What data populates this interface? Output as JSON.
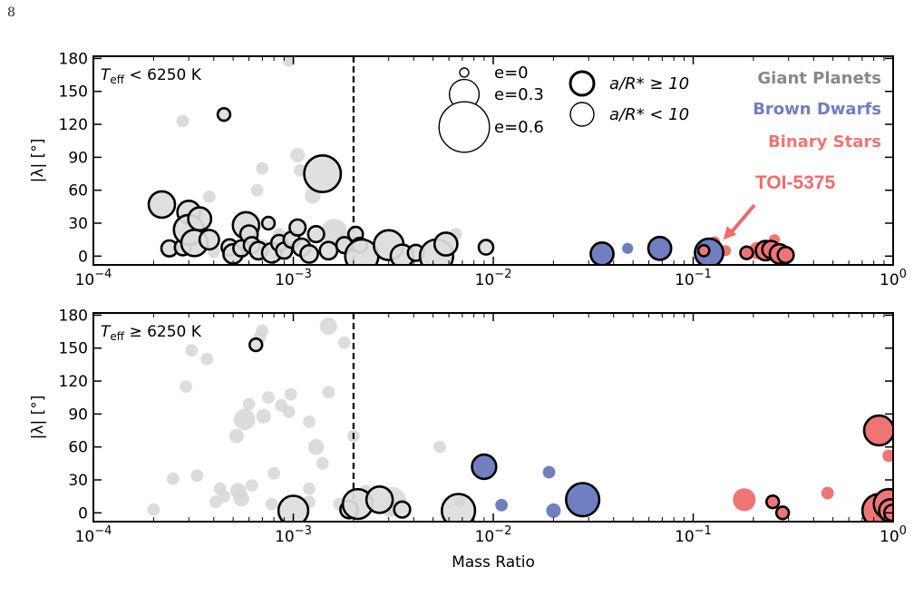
{
  "page_number": "8",
  "colors": {
    "giant_planets": "#888888",
    "brown_dwarfs": "#6f7fc0",
    "binary_stars": "#ef7575",
    "faint_point": "#d6d6d6",
    "annotation": "#ef6b6b"
  },
  "chart_data": [
    {
      "type": "scatter",
      "panel_label": "T_eff < 6250 K",
      "panel_label_parts": {
        "t": "T",
        "sub": "eff",
        "rest": " < 6250 K"
      },
      "xscale": "log",
      "xlim": [
        0.0001,
        1
      ],
      "ylim": [
        -8,
        182
      ],
      "x_ticks": [
        {
          "exp": "−4"
        },
        {
          "exp": "−3"
        },
        {
          "exp": "−2"
        },
        {
          "exp": "−1"
        },
        {
          "exp": "0"
        }
      ],
      "x_tick_values": [
        0.0001,
        0.001,
        0.01,
        0.1,
        1
      ],
      "y_ticks": [
        "0",
        "30",
        "60",
        "90",
        "120",
        "150",
        "180"
      ],
      "y_tick_values": [
        0,
        30,
        60,
        90,
        120,
        150,
        180
      ],
      "ylabel": "|λ| [°]",
      "xlabel": "",
      "vline_x": 0.002,
      "annotation": {
        "text": "TOI-5375",
        "x": 0.13,
        "y": 10
      },
      "legend": {
        "sizes": [
          {
            "label": "e=0",
            "e": 0
          },
          {
            "label": "e=0.3",
            "e": 0.3
          },
          {
            "label": "e=0.6",
            "e": 0.6
          }
        ],
        "styles": [
          {
            "label": "a/R* ≥ 10",
            "outlined": true
          },
          {
            "label": "a/R* < 10",
            "outlined": false
          }
        ],
        "categories": [
          {
            "label": "Giant Planets",
            "color": "#888888"
          },
          {
            "label": "Brown Dwarfs",
            "color": "#6f7fc0"
          },
          {
            "label": "Binary Stars",
            "color": "#ef7575"
          }
        ]
      },
      "points": [
        {
          "x": 0.00022,
          "y": 47,
          "e": 0.25,
          "c": "g",
          "o": 1
        },
        {
          "x": 0.00024,
          "y": 7,
          "e": 0.1,
          "c": "g",
          "o": 1
        },
        {
          "x": 0.00028,
          "y": 8,
          "e": 0.1,
          "c": "g",
          "o": 1
        },
        {
          "x": 0.0003,
          "y": 40,
          "e": 0.2,
          "c": "g",
          "o": 1
        },
        {
          "x": 0.0003,
          "y": 24,
          "e": 0.3,
          "c": "g",
          "o": 1
        },
        {
          "x": 0.00032,
          "y": 12,
          "e": 0.25,
          "c": "g",
          "o": 1
        },
        {
          "x": 0.00034,
          "y": 34,
          "e": 0.2,
          "c": "g",
          "o": 1
        },
        {
          "x": 0.00038,
          "y": 15,
          "e": 0.15,
          "c": "g",
          "o": 1
        },
        {
          "x": 0.00045,
          "y": 129,
          "e": 0.05,
          "c": "g",
          "o": 1
        },
        {
          "x": 0.00048,
          "y": 8,
          "e": 0.1,
          "c": "g",
          "o": 1
        },
        {
          "x": 0.0005,
          "y": 2,
          "e": 0.15,
          "c": "g",
          "o": 1
        },
        {
          "x": 0.00055,
          "y": 7,
          "e": 0.1,
          "c": "g",
          "o": 1
        },
        {
          "x": 0.00058,
          "y": 28,
          "e": 0.25,
          "c": "g",
          "o": 1
        },
        {
          "x": 0.0006,
          "y": 20,
          "e": 0.12,
          "c": "g",
          "o": 1
        },
        {
          "x": 0.00062,
          "y": 10,
          "e": 0.1,
          "c": "g",
          "o": 1
        },
        {
          "x": 0.00067,
          "y": 5,
          "e": 0.12,
          "c": "g",
          "o": 1
        },
        {
          "x": 0.00075,
          "y": 30,
          "e": 0.05,
          "c": "g",
          "o": 1
        },
        {
          "x": 0.00078,
          "y": 3,
          "e": 0.15,
          "c": "g",
          "o": 1
        },
        {
          "x": 0.00085,
          "y": 12,
          "e": 0.1,
          "c": "g",
          "o": 1
        },
        {
          "x": 0.0009,
          "y": 5,
          "e": 0.1,
          "c": "g",
          "o": 1
        },
        {
          "x": 0.00098,
          "y": 15,
          "e": 0.1,
          "c": "g",
          "o": 1
        },
        {
          "x": 0.00105,
          "y": 26,
          "e": 0.1,
          "c": "g",
          "o": 1
        },
        {
          "x": 0.0011,
          "y": 8,
          "e": 0.12,
          "c": "g",
          "o": 1
        },
        {
          "x": 0.0012,
          "y": 2,
          "e": 0.12,
          "c": "g",
          "o": 1
        },
        {
          "x": 0.0013,
          "y": 20,
          "e": 0.1,
          "c": "g",
          "o": 1
        },
        {
          "x": 0.0014,
          "y": 75,
          "e": 0.4,
          "c": "g",
          "o": 1
        },
        {
          "x": 0.0015,
          "y": 5,
          "e": 0.12,
          "c": "g",
          "o": 1
        },
        {
          "x": 0.0018,
          "y": 10,
          "e": 0.1,
          "c": "g",
          "o": 1
        },
        {
          "x": 0.00205,
          "y": 20,
          "e": 0.08,
          "c": "g",
          "o": 1
        },
        {
          "x": 0.00215,
          "y": 10,
          "e": 0.08,
          "c": "g",
          "o": 1
        },
        {
          "x": 0.0022,
          "y": 0,
          "e": 0.35,
          "c": "g",
          "o": 1
        },
        {
          "x": 0.003,
          "y": 10,
          "e": 0.3,
          "c": "g",
          "o": 1
        },
        {
          "x": 0.0035,
          "y": 0,
          "e": 0.2,
          "c": "g",
          "o": 1
        },
        {
          "x": 0.0041,
          "y": 3,
          "e": 0.1,
          "c": "g",
          "o": 1
        },
        {
          "x": 0.0052,
          "y": 0,
          "e": 0.35,
          "c": "g",
          "o": 1
        },
        {
          "x": 0.0058,
          "y": 11,
          "e": 0.2,
          "c": "g",
          "o": 1
        },
        {
          "x": 0.0092,
          "y": 8,
          "e": 0.08,
          "c": "g",
          "o": 1
        },
        {
          "x": 0.035,
          "y": 2,
          "e": 0.2,
          "c": "b",
          "o": 1
        },
        {
          "x": 0.047,
          "y": 7,
          "e": 0.03,
          "c": "b",
          "o": 0
        },
        {
          "x": 0.068,
          "y": 7,
          "e": 0.2,
          "c": "b",
          "o": 1
        },
        {
          "x": 0.12,
          "y": 3,
          "e": 0.28,
          "c": "b",
          "o": 1
        },
        {
          "x": 0.113,
          "y": 5,
          "e": 0.03,
          "c": "r",
          "o": 1
        },
        {
          "x": 0.128,
          "y": 13,
          "e": 0.03,
          "c": "r",
          "o": 0
        },
        {
          "x": 0.145,
          "y": 5,
          "e": 0.03,
          "c": "r",
          "o": 0
        },
        {
          "x": 0.185,
          "y": 3,
          "e": 0.05,
          "c": "r",
          "o": 1
        },
        {
          "x": 0.21,
          "y": 5,
          "e": 0.12,
          "c": "r",
          "o": 0
        },
        {
          "x": 0.23,
          "y": 5,
          "e": 0.15,
          "c": "r",
          "o": 1
        },
        {
          "x": 0.245,
          "y": 6,
          "e": 0.12,
          "c": "r",
          "o": 1
        },
        {
          "x": 0.255,
          "y": 15,
          "e": 0.03,
          "c": "r",
          "o": 0
        },
        {
          "x": 0.27,
          "y": 2,
          "e": 0.15,
          "c": "r",
          "o": 1
        },
        {
          "x": 0.29,
          "y": 1,
          "e": 0.1,
          "c": "r",
          "o": 1
        },
        {
          "x": 0.00028,
          "y": 123,
          "e": 0.05,
          "c": "g",
          "o": 0
        },
        {
          "x": 0.00038,
          "y": 54,
          "e": 0.05,
          "c": "g",
          "o": 0
        },
        {
          "x": 0.0006,
          "y": 30,
          "e": 0.05,
          "c": "g",
          "o": 0
        },
        {
          "x": 0.00066,
          "y": 60,
          "e": 0.05,
          "c": "g",
          "o": 0
        },
        {
          "x": 0.0007,
          "y": 80,
          "e": 0.05,
          "c": "g",
          "o": 0
        },
        {
          "x": 0.00085,
          "y": 20,
          "e": 0.05,
          "c": "g",
          "o": 0
        },
        {
          "x": 0.00095,
          "y": 178,
          "e": 0.05,
          "c": "g",
          "o": 0
        },
        {
          "x": 0.00105,
          "y": 92,
          "e": 0.08,
          "c": "g",
          "o": 0
        },
        {
          "x": 0.00108,
          "y": 78,
          "e": 0.05,
          "c": "g",
          "o": 0
        },
        {
          "x": 0.00125,
          "y": 55,
          "e": 0.1,
          "c": "g",
          "o": 0
        },
        {
          "x": 0.0016,
          "y": 22,
          "e": 0.25,
          "c": "g",
          "o": 0
        },
        {
          "x": 0.0018,
          "y": 16,
          "e": 0.05,
          "c": "g",
          "o": 0
        },
        {
          "x": 0.0065,
          "y": 20,
          "e": 0.05,
          "c": "g",
          "o": 0
        },
        {
          "x": 0.0025,
          "y": 5,
          "e": 0.05,
          "c": "g",
          "o": 0
        },
        {
          "x": 0.0028,
          "y": 8,
          "e": 0.05,
          "c": "g",
          "o": 0
        },
        {
          "x": 0.0004,
          "y": 4,
          "e": 0.05,
          "c": "g",
          "o": 0
        },
        {
          "x": 0.0007,
          "y": 10,
          "e": 0.05,
          "c": "g",
          "o": 0
        }
      ]
    },
    {
      "type": "scatter",
      "panel_label": "T_eff ≥ 6250 K",
      "panel_label_parts": {
        "t": "T",
        "sub": "eff",
        "rest": " ≥ 6250 K"
      },
      "xscale": "log",
      "xlim": [
        0.0001,
        1
      ],
      "ylim": [
        -8,
        182
      ],
      "x_ticks": [
        {
          "exp": "−4"
        },
        {
          "exp": "−3"
        },
        {
          "exp": "−2"
        },
        {
          "exp": "−1"
        },
        {
          "exp": "0"
        }
      ],
      "x_tick_values": [
        0.0001,
        0.001,
        0.01,
        0.1,
        1
      ],
      "y_ticks": [
        "0",
        "30",
        "60",
        "90",
        "120",
        "150",
        "180"
      ],
      "y_tick_values": [
        0,
        30,
        60,
        90,
        120,
        150,
        180
      ],
      "ylabel": "|λ| [°]",
      "xlabel": "Mass Ratio",
      "vline_x": 0.002,
      "points": [
        {
          "x": 0.00065,
          "y": 153,
          "e": 0.05,
          "c": "g",
          "o": 1
        },
        {
          "x": 0.001,
          "y": 2,
          "e": 0.3,
          "c": "g",
          "o": 1
        },
        {
          "x": 0.0019,
          "y": 3,
          "e": 0.12,
          "c": "g",
          "o": 1
        },
        {
          "x": 0.0021,
          "y": 8,
          "e": 0.3,
          "c": "g",
          "o": 1
        },
        {
          "x": 0.0027,
          "y": 12,
          "e": 0.25,
          "c": "g",
          "o": 1
        },
        {
          "x": 0.0035,
          "y": 3,
          "e": 0.1,
          "c": "g",
          "o": 1
        },
        {
          "x": 0.0067,
          "y": 2,
          "e": 0.35,
          "c": "g",
          "o": 1
        },
        {
          "x": 0.0068,
          "y": 10,
          "e": 0.03,
          "c": "b",
          "o": 0
        },
        {
          "x": 0.009,
          "y": 42,
          "e": 0.22,
          "c": "b",
          "o": 1
        },
        {
          "x": 0.011,
          "y": 7,
          "e": 0.05,
          "c": "b",
          "o": 0
        },
        {
          "x": 0.019,
          "y": 37,
          "e": 0.05,
          "c": "b",
          "o": 0
        },
        {
          "x": 0.02,
          "y": 2,
          "e": 0.08,
          "c": "b",
          "o": 0
        },
        {
          "x": 0.028,
          "y": 12,
          "e": 0.35,
          "c": "b",
          "o": 1
        },
        {
          "x": 0.18,
          "y": 12,
          "e": 0.2,
          "c": "r",
          "o": 0
        },
        {
          "x": 0.25,
          "y": 10,
          "e": 0.05,
          "c": "r",
          "o": 1
        },
        {
          "x": 0.28,
          "y": 0,
          "e": 0.05,
          "c": "r",
          "o": 1
        },
        {
          "x": 0.47,
          "y": 18,
          "e": 0.05,
          "c": "r",
          "o": 0
        },
        {
          "x": 0.85,
          "y": 75,
          "e": 0.3,
          "c": "r",
          "o": 1
        },
        {
          "x": 0.95,
          "y": 52,
          "e": 0.05,
          "c": "r",
          "o": 0
        },
        {
          "x": 0.85,
          "y": 2,
          "e": 0.35,
          "c": "r",
          "o": 1
        },
        {
          "x": 0.95,
          "y": 8,
          "e": 0.3,
          "c": "r",
          "o": 1
        },
        {
          "x": 0.97,
          "y": 2,
          "e": 0.2,
          "c": "r",
          "o": 1
        },
        {
          "x": 0.99,
          "y": 0,
          "e": 0.1,
          "c": "r",
          "o": 1
        },
        {
          "x": 0.0002,
          "y": 3,
          "e": 0.05,
          "c": "g",
          "o": 0
        },
        {
          "x": 0.00025,
          "y": 31,
          "e": 0.05,
          "c": "g",
          "o": 0
        },
        {
          "x": 0.00029,
          "y": 115,
          "e": 0.05,
          "c": "g",
          "o": 0
        },
        {
          "x": 0.00031,
          "y": 148,
          "e": 0.05,
          "c": "g",
          "o": 0
        },
        {
          "x": 0.00033,
          "y": 34,
          "e": 0.05,
          "c": "g",
          "o": 0
        },
        {
          "x": 0.00037,
          "y": 140,
          "e": 0.05,
          "c": "g",
          "o": 0
        },
        {
          "x": 0.00041,
          "y": 10,
          "e": 0.05,
          "c": "g",
          "o": 0
        },
        {
          "x": 0.00043,
          "y": 22,
          "e": 0.05,
          "c": "g",
          "o": 0
        },
        {
          "x": 0.00045,
          "y": 15,
          "e": 0.05,
          "c": "g",
          "o": 0
        },
        {
          "x": 0.00052,
          "y": 70,
          "e": 0.08,
          "c": "g",
          "o": 0
        },
        {
          "x": 0.00053,
          "y": 20,
          "e": 0.1,
          "c": "g",
          "o": 0
        },
        {
          "x": 0.00055,
          "y": 13,
          "e": 0.1,
          "c": "g",
          "o": 0
        },
        {
          "x": 0.00057,
          "y": 85,
          "e": 0.18,
          "c": "g",
          "o": 0
        },
        {
          "x": 0.0006,
          "y": 99,
          "e": 0.05,
          "c": "g",
          "o": 0
        },
        {
          "x": 0.00062,
          "y": 25,
          "e": 0.05,
          "c": "g",
          "o": 0
        },
        {
          "x": 0.00068,
          "y": 160,
          "e": 0.05,
          "c": "g",
          "o": 0
        },
        {
          "x": 0.0007,
          "y": 166,
          "e": 0.05,
          "c": "g",
          "o": 0
        },
        {
          "x": 0.00071,
          "y": 88,
          "e": 0.08,
          "c": "g",
          "o": 0
        },
        {
          "x": 0.00075,
          "y": 105,
          "e": 0.05,
          "c": "g",
          "o": 0
        },
        {
          "x": 0.00078,
          "y": 8,
          "e": 0.05,
          "c": "g",
          "o": 0
        },
        {
          "x": 0.0008,
          "y": 36,
          "e": 0.05,
          "c": "g",
          "o": 0
        },
        {
          "x": 0.00087,
          "y": 98,
          "e": 0.05,
          "c": "g",
          "o": 0
        },
        {
          "x": 0.00095,
          "y": 92,
          "e": 0.05,
          "c": "g",
          "o": 0
        },
        {
          "x": 0.00097,
          "y": 108,
          "e": 0.05,
          "c": "g",
          "o": 0
        },
        {
          "x": 0.0012,
          "y": 83,
          "e": 0.05,
          "c": "g",
          "o": 0
        },
        {
          "x": 0.0012,
          "y": 22,
          "e": 0.05,
          "c": "g",
          "o": 0
        },
        {
          "x": 0.0013,
          "y": 60,
          "e": 0.1,
          "c": "g",
          "o": 0
        },
        {
          "x": 0.0014,
          "y": 45,
          "e": 0.05,
          "c": "g",
          "o": 0
        },
        {
          "x": 0.0015,
          "y": 170,
          "e": 0.12,
          "c": "g",
          "o": 0
        },
        {
          "x": 0.0015,
          "y": 110,
          "e": 0.05,
          "c": "g",
          "o": 0
        },
        {
          "x": 0.0017,
          "y": 8,
          "e": 0.05,
          "c": "g",
          "o": 0
        },
        {
          "x": 0.0018,
          "y": 155,
          "e": 0.05,
          "c": "g",
          "o": 0
        },
        {
          "x": 0.002,
          "y": 70,
          "e": 0.05,
          "c": "g",
          "o": 0
        },
        {
          "x": 0.0023,
          "y": 20,
          "e": 0.05,
          "c": "g",
          "o": 0
        },
        {
          "x": 0.0031,
          "y": 10,
          "e": 0.3,
          "c": "g",
          "o": 0
        },
        {
          "x": 0.0032,
          "y": 4,
          "e": 0.1,
          "c": "g",
          "o": 0
        },
        {
          "x": 0.0054,
          "y": 60,
          "e": 0.05,
          "c": "g",
          "o": 0
        },
        {
          "x": 0.0012,
          "y": 10,
          "e": 0.05,
          "c": "g",
          "o": 0
        }
      ]
    }
  ]
}
